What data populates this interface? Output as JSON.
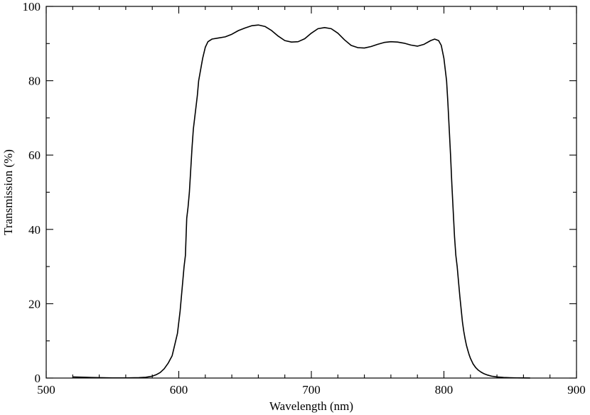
{
  "chart_data": {
    "type": "line",
    "title": "",
    "xlabel": "Wavelength (nm)",
    "ylabel": "Transmission (%)",
    "xlim": [
      500,
      900
    ],
    "ylim": [
      0,
      100
    ],
    "x_major_ticks": [
      500,
      600,
      700,
      800,
      900
    ],
    "x_minor_step": 20,
    "y_major_ticks": [
      0,
      20,
      40,
      60,
      80,
      100
    ],
    "y_minor_step": 10,
    "grid": false,
    "legend": "none",
    "line_color": "#000000",
    "series": [
      {
        "x": [
          520,
          530,
          540,
          550,
          560,
          570,
          575,
          580,
          583,
          586,
          589,
          592,
          595,
          597,
          599,
          600,
          601,
          602,
          603,
          604,
          605,
          606,
          607,
          608,
          609,
          610,
          611,
          612,
          613,
          614,
          615,
          616,
          617,
          618,
          620,
          622,
          625,
          630,
          635,
          640,
          645,
          650,
          655,
          660,
          665,
          670,
          675,
          680,
          685,
          690,
          695,
          700,
          705,
          710,
          715,
          720,
          725,
          730,
          735,
          740,
          745,
          750,
          755,
          760,
          765,
          770,
          775,
          780,
          785,
          790,
          793,
          796,
          798,
          800,
          802,
          803,
          804,
          805,
          806,
          807,
          808,
          809,
          810,
          811,
          812,
          813,
          814,
          815,
          816,
          817,
          818,
          819,
          820,
          822,
          824,
          826,
          828,
          830,
          833,
          836,
          840,
          845,
          850,
          855,
          860,
          865
        ],
        "y": [
          0.3,
          0.2,
          0.1,
          0.05,
          0.05,
          0.1,
          0.2,
          0.5,
          0.9,
          1.5,
          2.5,
          4.0,
          6.0,
          9.0,
          12.0,
          15.0,
          18.0,
          22.0,
          26.0,
          30.0,
          33.0,
          43.0,
          46.0,
          50.0,
          56.0,
          62.0,
          67.0,
          70.0,
          73.0,
          76.0,
          80.0,
          82.0,
          84.0,
          86.0,
          89.0,
          90.5,
          91.2,
          91.5,
          91.8,
          92.5,
          93.5,
          94.2,
          94.8,
          95.0,
          94.6,
          93.5,
          92.0,
          90.8,
          90.4,
          90.5,
          91.3,
          92.8,
          94.0,
          94.3,
          94.0,
          92.8,
          91.0,
          89.5,
          88.9,
          88.8,
          89.2,
          89.8,
          90.3,
          90.5,
          90.4,
          90.1,
          89.6,
          89.3,
          89.8,
          90.8,
          91.2,
          90.8,
          89.5,
          86.0,
          80.0,
          74.0,
          67.0,
          60.0,
          52.0,
          45.0,
          38.0,
          33.0,
          30.0,
          26.0,
          22.0,
          18.5,
          15.0,
          12.5,
          10.5,
          8.8,
          7.5,
          6.3,
          5.3,
          3.8,
          2.8,
          2.1,
          1.6,
          1.2,
          0.8,
          0.5,
          0.3,
          0.15,
          0.08,
          0.05,
          0.03,
          0.02
        ]
      }
    ]
  }
}
